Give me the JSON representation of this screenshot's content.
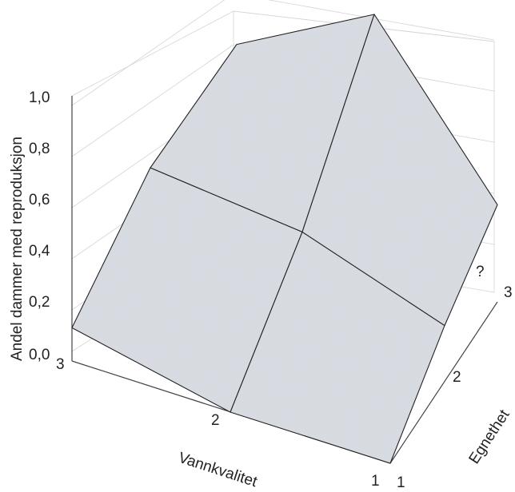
{
  "chart_data": {
    "type": "surface",
    "title": "",
    "xlabel": "Vannkvalitet",
    "ylabel": "Egnethet",
    "zlabel": "Andel dammer med reproduksjon",
    "x_ticks": [
      "3",
      "2",
      "1"
    ],
    "y_ticks": [
      "1",
      "2",
      "3"
    ],
    "z_ticks": [
      "0,0",
      "0,2",
      "0,4",
      "0,6",
      "0,8",
      "1,0"
    ],
    "zlim": [
      0,
      1
    ],
    "x": [
      3,
      2,
      1
    ],
    "y": [
      1,
      2,
      3
    ],
    "z": [
      [
        0.13,
        0.55,
        0.82
      ],
      [
        0.0,
        0.43,
        1.0
      ],
      [
        0.0,
        0.22,
        0.38
      ]
    ],
    "annotations": [
      {
        "text": "?",
        "x": 1,
        "y": 3
      }
    ],
    "grid": true,
    "surface_color": "#d9dde3"
  }
}
